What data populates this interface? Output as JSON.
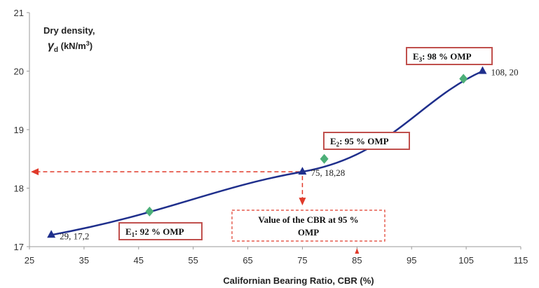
{
  "chart_data": {
    "type": "line",
    "xlabel": "Californian Bearing Ratio, CBR (%)",
    "ylabel_line1": "Dry density,",
    "ylabel_line2": "γ",
    "ylabel_sub": "d",
    "ylabel_units": " (kN/m",
    "ylabel_units_sup": "3",
    "ylabel_units_end": ")",
    "xlim": [
      25,
      115
    ],
    "ylim": [
      17,
      21
    ],
    "x_ticks": [
      "25",
      "35",
      "45",
      "55",
      "65",
      "75",
      "85",
      "95",
      "105",
      "115"
    ],
    "y_ticks": [
      "17",
      "18",
      "19",
      "20",
      "21"
    ],
    "grid": false,
    "colors": {
      "curve": "#1f2f8c",
      "diamond": "#4caf78",
      "dashed": "#e03a2a",
      "box_border": "#c0504d"
    },
    "curve_points": [
      {
        "x": 29,
        "y": 17.2
      },
      {
        "x": 75,
        "y": 18.28
      },
      {
        "x": 108,
        "y": 20
      }
    ],
    "triangle_points": [
      {
        "x": 29,
        "y": 17.2,
        "label": "29, 17,2"
      },
      {
        "x": 75,
        "y": 18.28,
        "label": "75, 18,28"
      },
      {
        "x": 108,
        "y": 20,
        "label": "108, 20"
      }
    ],
    "diamond_points": [
      {
        "x": 47,
        "y": 17.6
      },
      {
        "x": 79,
        "y": 18.5
      },
      {
        "x": 104.5,
        "y": 19.87
      }
    ],
    "annotations": [
      {
        "prefix": "E",
        "sub": "1",
        "suffix": ": 92 % OMP"
      },
      {
        "prefix": "E",
        "sub": "2",
        "suffix": ": 95 % OMP"
      },
      {
        "prefix": "E",
        "sub": "3",
        "suffix": ": 98 % OMP"
      }
    ],
    "cbr_note": {
      "line1": "Value of the CBR at 95 %",
      "line2": "OMP"
    },
    "reference_x": 85
  }
}
